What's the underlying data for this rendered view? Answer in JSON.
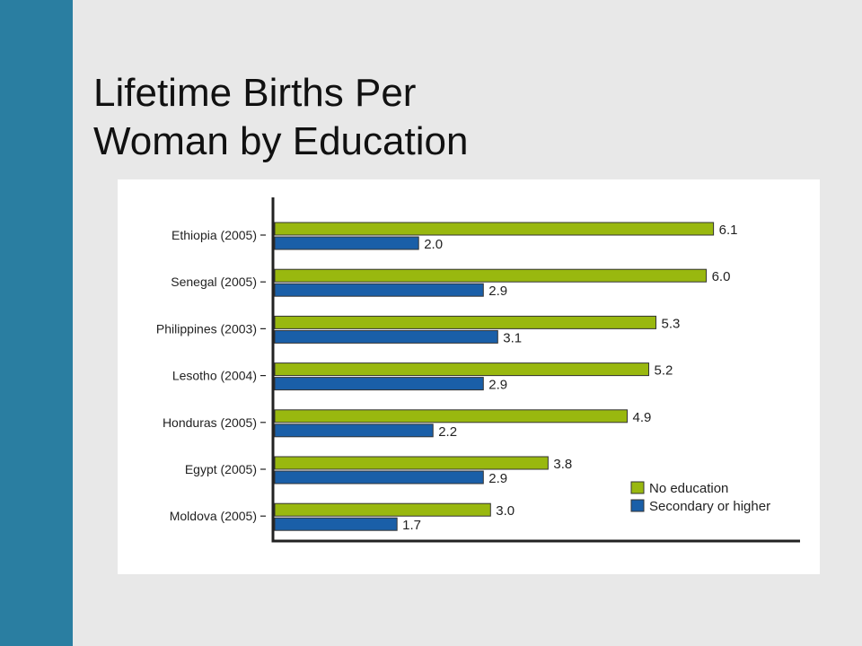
{
  "slide": {
    "title_line1": "Lifetime Births Per",
    "title_line2": "Woman by Education"
  },
  "colors": {
    "sidebar": "#2a7ea1",
    "background": "#e8e8e8",
    "no_education": "#99b80f",
    "secondary": "#1a5fa8",
    "axis": "#222222"
  },
  "chart_data": {
    "type": "bar",
    "orientation": "horizontal",
    "categories": [
      "Ethiopia (2005)",
      "Senegal (2005)",
      "Philippines (2003)",
      "Lesotho (2004)",
      "Honduras (2005)",
      "Egypt (2005)",
      "Moldova (2005)"
    ],
    "series": [
      {
        "name": "No education",
        "values": [
          6.1,
          6.0,
          5.3,
          5.2,
          4.9,
          3.8,
          3.0
        ],
        "value_labels": [
          "6.1",
          "6.0",
          "5.3",
          "5.2",
          "4.9",
          "3.8",
          "3.0"
        ]
      },
      {
        "name": "Secondary or higher",
        "values": [
          2.0,
          2.9,
          3.1,
          2.9,
          2.2,
          2.9,
          1.7
        ],
        "value_labels": [
          "2.0",
          "2.9",
          "3.1",
          "2.9",
          "2.2",
          "2.9",
          "1.7"
        ]
      }
    ],
    "xlim": [
      0,
      7.4
    ],
    "grid": false,
    "legend_position": "bottom-right"
  }
}
